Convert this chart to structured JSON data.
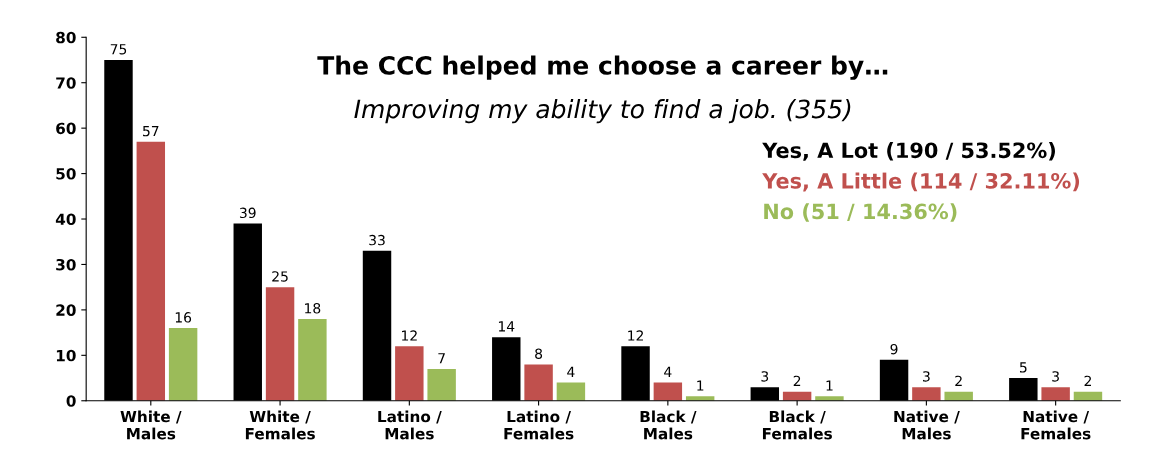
{
  "chart_data": {
    "type": "bar",
    "title": "The CCC helped me choose a career by…",
    "subtitle": "Improving my ability to find a job. (355)",
    "categories": [
      "White /\nMales",
      "White /\nFemales",
      "Latino /\nMales",
      "Latino /\nFemales",
      "Black /\nMales",
      "Black /\nFemales",
      "Native /\nMales",
      "Native /\nFemales"
    ],
    "series": [
      {
        "name": "Yes, A Lot (190 / 53.52%)",
        "color": "#000000",
        "values": [
          75,
          39,
          33,
          14,
          12,
          3,
          9,
          5
        ]
      },
      {
        "name": "Yes, A Little (114 / 32.11%)",
        "color": "#c0504d",
        "values": [
          57,
          25,
          12,
          8,
          4,
          2,
          3,
          3
        ]
      },
      {
        "name": "No (51 / 14.36%)",
        "color": "#9bbb59",
        "values": [
          16,
          18,
          7,
          4,
          1,
          1,
          2,
          2
        ]
      }
    ],
    "ylim": [
      0,
      80
    ],
    "yticks": [
      0,
      10,
      20,
      30,
      40,
      50,
      60,
      70,
      80
    ],
    "data_labels": true,
    "legend": "right",
    "grid": false
  }
}
